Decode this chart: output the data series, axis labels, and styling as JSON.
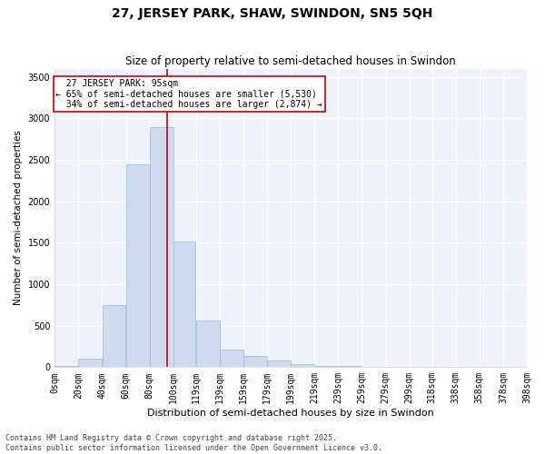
{
  "title1": "27, JERSEY PARK, SHAW, SWINDON, SN5 5QH",
  "title2": "Size of property relative to semi-detached houses in Swindon",
  "xlabel": "Distribution of semi-detached houses by size in Swindon",
  "ylabel": "Number of semi-detached properties",
  "property_size": 95,
  "property_label": "27 JERSEY PARK: 95sqm",
  "pct_smaller": 65,
  "pct_larger": 34,
  "n_smaller": 5530,
  "n_larger": 2874,
  "bar_color": "#ccdcee",
  "bar_edge_color": "#99bbdd",
  "line_color": "#cc0000",
  "annotation_box_color": "#cc0000",
  "background_color": "#eef2fb",
  "grid_color": "#ffffff",
  "bin_edges": [
    0,
    20,
    40,
    60,
    80,
    100,
    119,
    139,
    159,
    179,
    199,
    219,
    239,
    259,
    279,
    299,
    318,
    338,
    358,
    378,
    398
  ],
  "bin_labels": [
    "0sqm",
    "20sqm",
    "40sqm",
    "60sqm",
    "80sqm",
    "100sqm",
    "119sqm",
    "139sqm",
    "159sqm",
    "179sqm",
    "199sqm",
    "219sqm",
    "239sqm",
    "259sqm",
    "279sqm",
    "299sqm",
    "318sqm",
    "338sqm",
    "358sqm",
    "378sqm",
    "398sqm"
  ],
  "counts": [
    15,
    100,
    750,
    2450,
    2900,
    1520,
    560,
    210,
    130,
    75,
    40,
    20,
    10,
    5,
    3,
    1,
    0,
    0,
    0,
    0
  ],
  "ylim": [
    0,
    3600
  ],
  "yticks": [
    0,
    500,
    1000,
    1500,
    2000,
    2500,
    3000,
    3500
  ],
  "footer": "Contains HM Land Registry data © Crown copyright and database right 2025.\nContains public sector information licensed under the Open Government Licence v3.0.",
  "title1_fontsize": 10,
  "title2_fontsize": 8.5,
  "xlabel_fontsize": 8,
  "ylabel_fontsize": 7.5,
  "tick_fontsize": 7,
  "annotation_fontsize": 7,
  "footer_fontsize": 6
}
